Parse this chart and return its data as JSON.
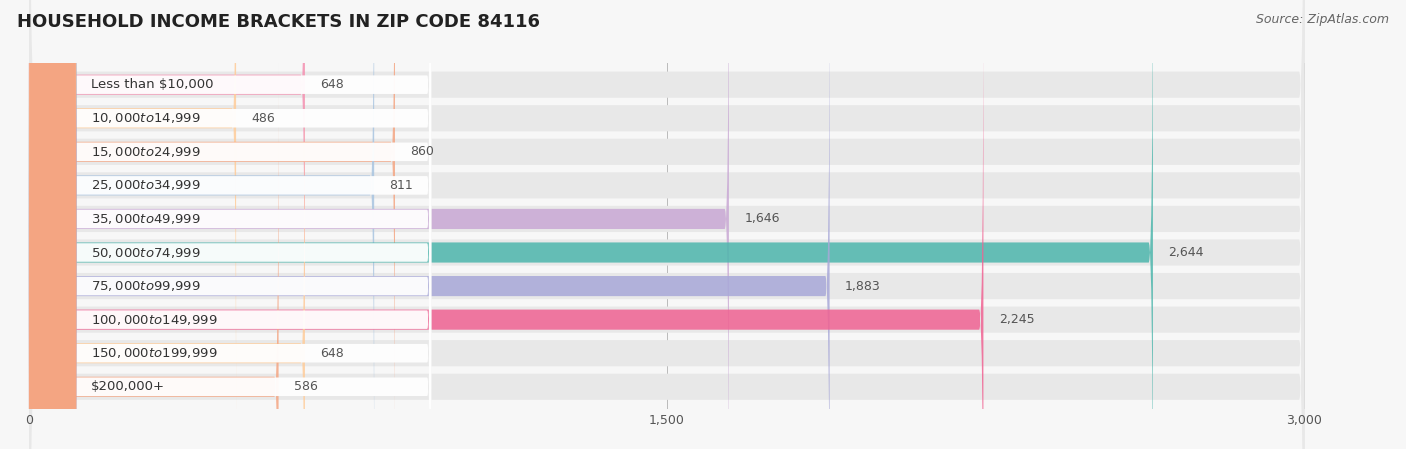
{
  "title": "HOUSEHOLD INCOME BRACKETS IN ZIP CODE 84116",
  "source": "Source: ZipAtlas.com",
  "categories": [
    "Less than $10,000",
    "$10,000 to $14,999",
    "$15,000 to $24,999",
    "$25,000 to $34,999",
    "$35,000 to $49,999",
    "$50,000 to $74,999",
    "$75,000 to $99,999",
    "$100,000 to $149,999",
    "$150,000 to $199,999",
    "$200,000+"
  ],
  "values": [
    648,
    486,
    860,
    811,
    1646,
    2644,
    1883,
    2245,
    648,
    586
  ],
  "bar_colors": [
    "#F48FB1",
    "#FFCC99",
    "#F4A582",
    "#A8C4E0",
    "#C9A8D4",
    "#4DB6AC",
    "#A8A8D8",
    "#F06292",
    "#FFCC99",
    "#F4A582"
  ],
  "label_bg_color": "#ffffff",
  "row_bg_color": "#ebebeb",
  "xlim_max": 3000,
  "xticks": [
    0,
    1500,
    3000
  ],
  "background_color": "#f7f7f7",
  "title_fontsize": 13,
  "label_fontsize": 9.5,
  "value_fontsize": 9,
  "source_fontsize": 9
}
